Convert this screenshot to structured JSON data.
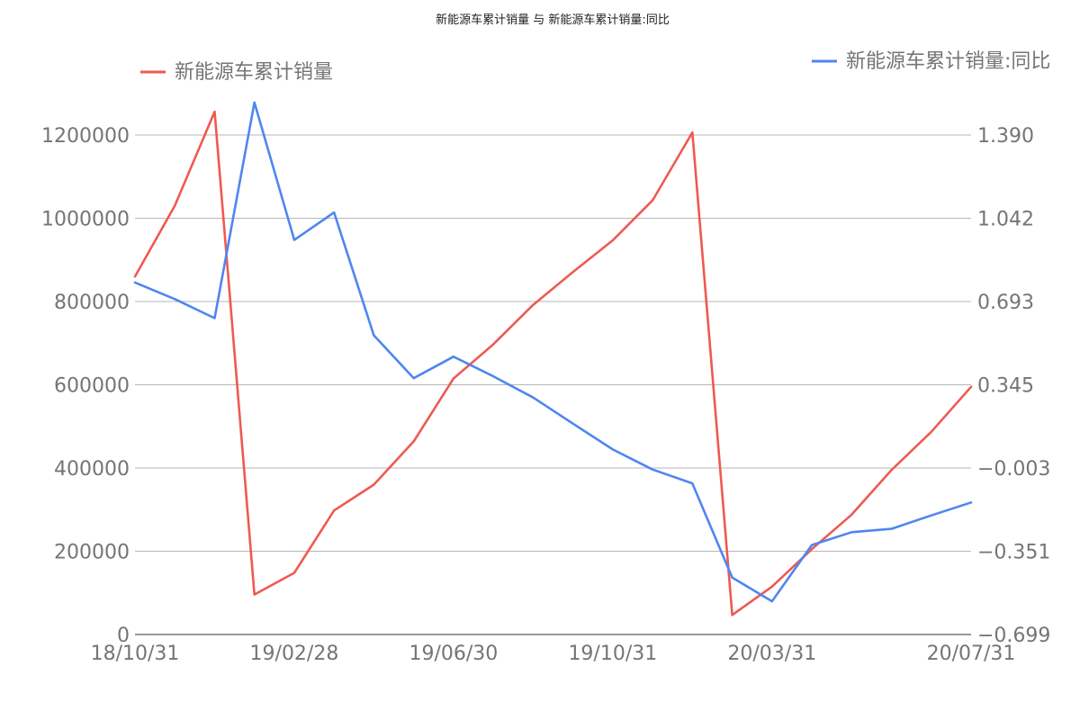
{
  "chart_data": {
    "type": "line",
    "title": "新能源车累计销量 与 新能源车累计销量:同比",
    "x": [
      "18/10/31",
      "18/11/30",
      "18/12/31",
      "19/01/31",
      "19/02/28",
      "19/03/31",
      "19/04/30",
      "19/05/31",
      "19/06/30",
      "19/07/31",
      "19/08/31",
      "19/09/30",
      "19/10/31",
      "19/11/30",
      "19/12/31",
      "20/01/31",
      "20/02/29",
      "20/03/31",
      "20/04/30",
      "20/05/31",
      "20/06/30",
      "20/07/31"
    ],
    "x_tick_labels": [
      "18/10/31",
      "19/02/28",
      "19/06/30",
      "19/10/31",
      "20/03/31",
      "20/07/31"
    ],
    "x_tick_indices": [
      0,
      4,
      8,
      12,
      16,
      21
    ],
    "left_axis": {
      "ylim": [
        0,
        1200000
      ],
      "ticks": [
        0,
        200000,
        400000,
        600000,
        800000,
        1000000,
        1200000
      ],
      "tick_labels": [
        "0",
        "200000",
        "400000",
        "600000",
        "800000",
        "1000000",
        "1200000"
      ]
    },
    "right_axis": {
      "ylim": [
        -0.699,
        1.39
      ],
      "ticks": [
        -0.699,
        -0.351,
        -0.003,
        0.345,
        0.693,
        1.042,
        1.39
      ],
      "tick_labels": [
        "−0.699",
        "−0.351",
        "−0.003",
        "0.345",
        "0.693",
        "1.042",
        "1.390"
      ]
    },
    "grid": true,
    "legend_placement": [
      "top-left",
      "top-right"
    ],
    "series": [
      {
        "name": "新能源车累计销量",
        "axis": "left",
        "color": "#ee5a52",
        "values": [
          860000,
          1030000,
          1256000,
          96000,
          148000,
          298000,
          360000,
          464000,
          615000,
          697000,
          792000,
          871000,
          947000,
          1043000,
          1206000,
          47000,
          115000,
          205000,
          288000,
          395000,
          487000,
          595000
        ]
      },
      {
        "name": "新能源车累计销量:同比",
        "axis": "right",
        "color": "#4f86ef",
        "values": [
          0.773,
          0.704,
          0.624,
          1.526,
          0.951,
          1.066,
          0.552,
          0.373,
          0.463,
          0.381,
          0.292,
          0.183,
          0.075,
          -0.009,
          -0.067,
          -0.461,
          -0.56,
          -0.325,
          -0.271,
          -0.257,
          -0.201,
          -0.147
        ]
      }
    ]
  }
}
